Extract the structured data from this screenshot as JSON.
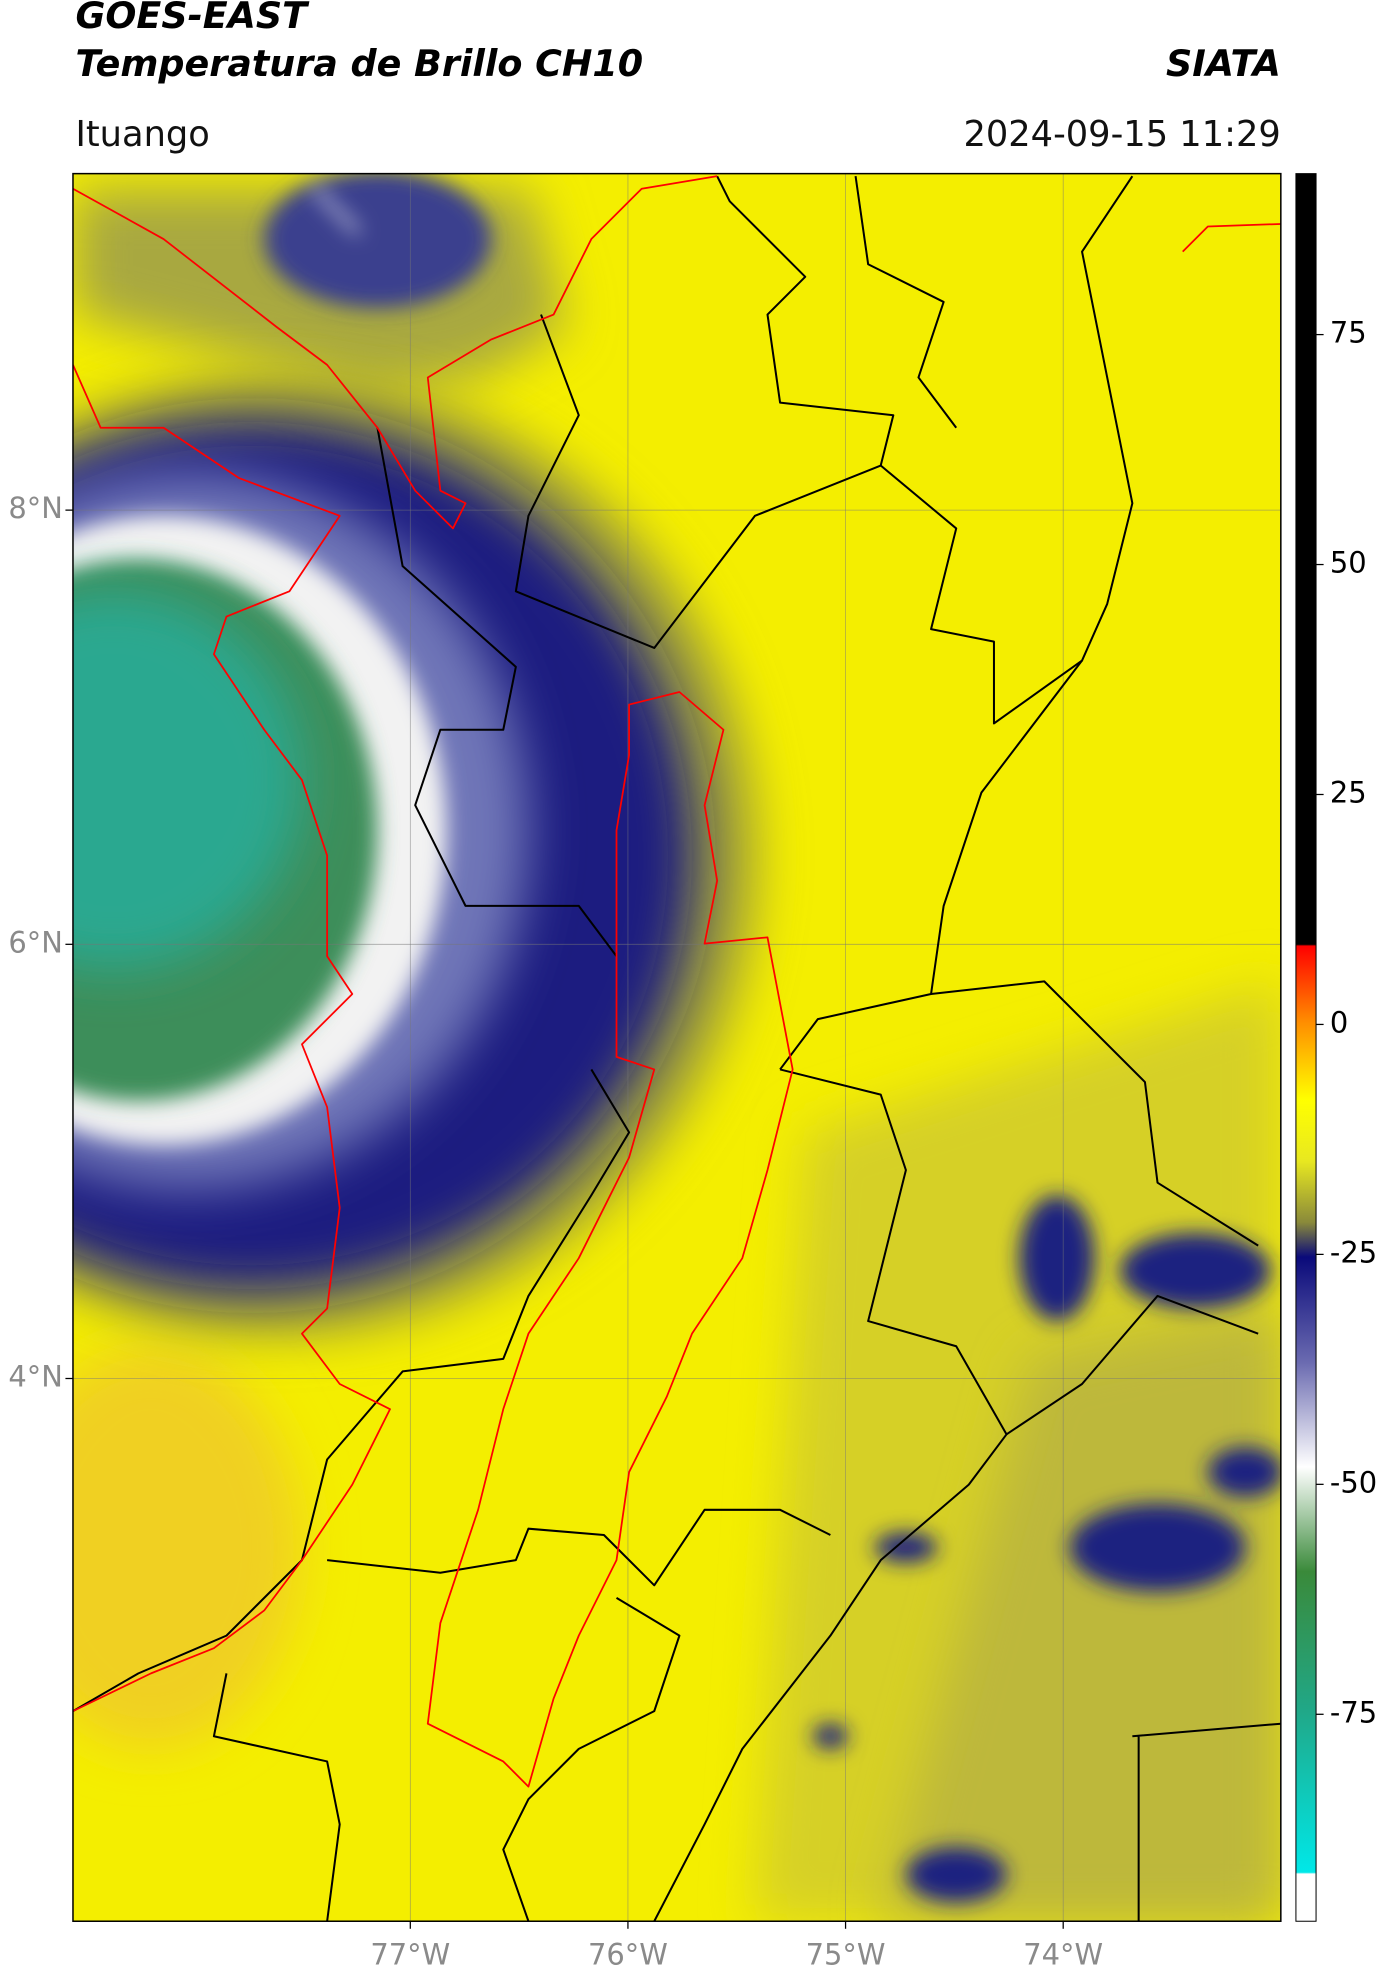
{
  "header": {
    "satellite": "GOES-EAST",
    "product": "Temperatura de Brillo CH10",
    "institution": "SIATA",
    "location": "Ituango",
    "datetime": "2024-09-15 11:29"
  },
  "map": {
    "xlim": [
      -78.55,
      -73
    ],
    "ylim": [
      1.5,
      9.55
    ],
    "grid": true,
    "xticks": [
      {
        "value": -77,
        "label": "77°W"
      },
      {
        "value": -76,
        "label": "76°W"
      },
      {
        "value": -75,
        "label": "75°W"
      },
      {
        "value": -74,
        "label": "74°W"
      }
    ],
    "yticks": [
      {
        "value": 8,
        "label": "8°N"
      },
      {
        "value": 6,
        "label": "6°N"
      },
      {
        "value": 4,
        "label": "4°N"
      }
    ]
  },
  "colorbar": {
    "lim": [
      -97.5,
      92.5
    ],
    "ticks": [
      75,
      50,
      25,
      0,
      -25,
      -50,
      -75
    ]
  }
}
